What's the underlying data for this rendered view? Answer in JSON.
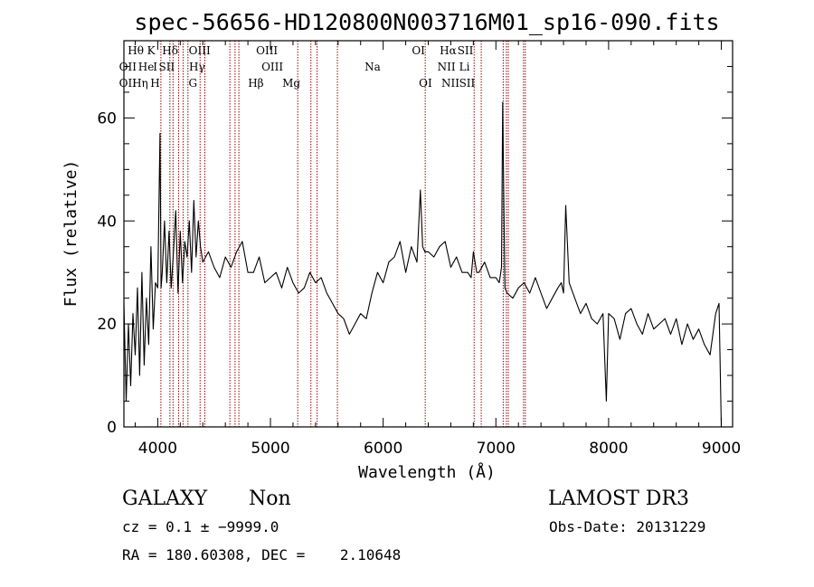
{
  "chart_data": {
    "type": "line",
    "title": "spec-56656-HD120800N003716M01_sp16-090.fits",
    "xlabel": "Wavelength (Å)",
    "ylabel": "Flux (relative)",
    "xlim": [
      3700,
      9100
    ],
    "ylim": [
      0,
      75
    ],
    "xticks": [
      4000,
      5000,
      6000,
      7000,
      8000,
      9000
    ],
    "yticks": [
      0,
      20,
      40,
      60
    ],
    "x_tick_labels": [
      "4000",
      "5000",
      "6000",
      "7000",
      "8000",
      "9000"
    ],
    "y_tick_labels": [
      "0",
      "20",
      "40",
      "60"
    ],
    "grid": false,
    "series": [
      {
        "x": [
          3700,
          3720,
          3740,
          3760,
          3780,
          3800,
          3820,
          3840,
          3860,
          3880,
          3900,
          3920,
          3940,
          3960,
          3980,
          4000,
          4020,
          4030,
          4040,
          4060,
          4080,
          4100,
          4120,
          4140,
          4160,
          4180,
          4200,
          4220,
          4240,
          4260,
          4280,
          4300,
          4320,
          4340,
          4360,
          4380,
          4400,
          4450,
          4500,
          4550,
          4600,
          4650,
          4700,
          4750,
          4800,
          4850,
          4900,
          4950,
          5000,
          5050,
          5100,
          5150,
          5200,
          5250,
          5300,
          5350,
          5400,
          5450,
          5500,
          5550,
          5600,
          5650,
          5700,
          5750,
          5800,
          5850,
          5900,
          5950,
          6000,
          6050,
          6100,
          6150,
          6200,
          6250,
          6300,
          6330,
          6350,
          6370,
          6400,
          6450,
          6500,
          6550,
          6600,
          6650,
          6700,
          6750,
          6780,
          6800,
          6830,
          6850,
          6900,
          6950,
          7000,
          7030,
          7050,
          7060,
          7070,
          7080,
          7100,
          7150,
          7200,
          7250,
          7300,
          7350,
          7400,
          7450,
          7500,
          7550,
          7580,
          7600,
          7620,
          7650,
          7700,
          7750,
          7800,
          7850,
          7900,
          7950,
          7980,
          8000,
          8050,
          8100,
          8150,
          8200,
          8250,
          8300,
          8350,
          8400,
          8450,
          8500,
          8550,
          8600,
          8650,
          8700,
          8750,
          8800,
          8850,
          8900,
          8950,
          8980,
          9000
        ],
        "y": [
          24,
          5,
          20,
          8,
          22,
          14,
          27,
          10,
          30,
          12,
          25,
          16,
          35,
          19,
          28,
          27,
          57,
          27,
          30,
          40,
          28,
          38,
          27,
          34,
          42,
          26,
          38,
          28,
          36,
          33,
          40,
          30,
          44,
          33,
          40,
          35,
          32,
          34,
          31,
          29,
          33,
          31,
          34,
          36,
          30,
          30,
          33,
          28,
          29,
          30,
          27,
          31,
          28,
          26,
          27,
          30,
          28,
          29,
          26,
          24,
          22,
          21,
          18,
          20,
          22,
          21,
          26,
          30,
          28,
          32,
          33,
          36,
          30,
          35,
          32,
          46,
          35,
          34,
          34,
          33,
          35,
          36,
          31,
          33,
          30,
          30,
          29,
          34,
          30,
          30,
          32,
          29,
          29,
          28,
          31,
          63,
          45,
          27,
          26,
          25,
          27,
          28,
          26,
          29,
          26,
          23,
          25,
          27,
          28,
          26,
          43,
          28,
          25,
          22,
          24,
          21,
          20,
          22,
          5,
          22,
          21,
          17,
          22,
          23,
          20,
          18,
          22,
          19,
          20,
          21,
          18,
          21,
          16,
          20,
          17,
          19,
          16,
          14,
          22,
          24,
          0
        ],
        "line_ids": [
          "OII",
          "Hθ",
          "Hε",
          "K",
          "H",
          "Hδ",
          "SII",
          "OIII",
          "Hγ",
          "G",
          "Hβ",
          "OIII",
          "OIII",
          "Mg",
          "Na",
          "OI",
          "OI",
          "Hα",
          "NII",
          "NII",
          "SII",
          "SII",
          "Li"
        ]
      }
    ],
    "annotations": [
      {
        "label": "OII",
        "x": 3727,
        "row": 3
      },
      {
        "label": "OII",
        "x": 3727,
        "row": 2
      },
      {
        "label": "Hθ",
        "x": 3798,
        "row": 1
      },
      {
        "label": "Hη",
        "x": 3836,
        "row": 3
      },
      {
        "label": "He",
        "x": 3889,
        "row": 2
      },
      {
        "label": "K",
        "x": 3934,
        "row": 1
      },
      {
        "label": "H",
        "x": 3969,
        "row": 3
      },
      {
        "label": "I",
        "x": 3970,
        "row": 2
      },
      {
        "label": "Hδ",
        "x": 4102,
        "row": 1
      },
      {
        "label": "SII",
        "x": 4072,
        "row": 2
      },
      {
        "label": "OIII",
        "x": 4363,
        "row": 1
      },
      {
        "label": "Hγ",
        "x": 4340,
        "row": 2
      },
      {
        "label": "G",
        "x": 4304,
        "row": 3
      },
      {
        "label": "Hβ",
        "x": 4861,
        "row": 3
      },
      {
        "label": "OIII",
        "x": 4959,
        "row": 1
      },
      {
        "label": "OIII",
        "x": 5007,
        "row": 2
      },
      {
        "label": "Mg",
        "x": 5175,
        "row": 3
      },
      {
        "label": "Na",
        "x": 5894,
        "row": 2
      },
      {
        "label": "OI",
        "x": 6300,
        "row": 1
      },
      {
        "label": "OI",
        "x": 6363,
        "row": 3
      },
      {
        "label": "Hα",
        "x": 6563,
        "row": 1
      },
      {
        "label": "NII",
        "x": 6548,
        "row": 2
      },
      {
        "label": "NII",
        "x": 6583,
        "row": 3
      },
      {
        "label": "SII",
        "x": 6716,
        "row": 1
      },
      {
        "label": "Li",
        "x": 6708,
        "row": 2
      },
      {
        "label": "SII",
        "x": 6731,
        "row": 3
      }
    ],
    "line_marks_x": [
      4028,
      4108,
      4136,
      4185,
      4225,
      4268,
      4376,
      4418,
      4640,
      4686,
      4720,
      5242,
      5359,
      5414,
      5594,
      6373,
      6807,
      6870,
      7065,
      7093,
      7110,
      7245,
      7261
    ],
    "line_color": "#990000"
  },
  "info": {
    "class_label": "GALAXY",
    "subclass": "Non",
    "survey": "LAMOST DR3",
    "cz_text": "cz = 0.1 ± −9999.0",
    "obs_date": "Obs-Date: 20131229",
    "radec_text": "RA = 180.60308, DEC =    2.10648"
  }
}
